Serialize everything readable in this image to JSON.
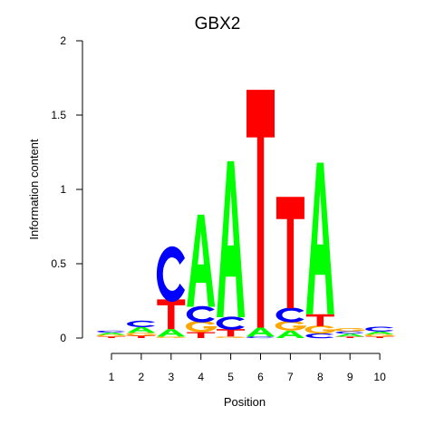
{
  "chart_data": {
    "type": "sequence-logo",
    "title": "GBX2",
    "xlabel": "Position",
    "ylabel": "Information content",
    "ylim": [
      0,
      2
    ],
    "yticks": [
      "0",
      "0.5",
      "1",
      "1.5",
      "2"
    ],
    "xticks": [
      "1",
      "2",
      "3",
      "4",
      "5",
      "6",
      "7",
      "8",
      "9",
      "10"
    ],
    "colors": {
      "A": "#00ff00",
      "C": "#0000ff",
      "G": "#ffa500",
      "T": "#ff0000"
    },
    "positions": [
      [
        {
          "l": "T",
          "h": 0.01
        },
        {
          "l": "G",
          "h": 0.012
        },
        {
          "l": "A",
          "h": 0.015
        },
        {
          "l": "C",
          "h": 0.013
        }
      ],
      [
        {
          "l": "T",
          "h": 0.015
        },
        {
          "l": "G",
          "h": 0.02
        },
        {
          "l": "A",
          "h": 0.04
        },
        {
          "l": "C",
          "h": 0.04
        }
      ],
      [
        {
          "l": "G",
          "h": 0.01
        },
        {
          "l": "A",
          "h": 0.05
        },
        {
          "l": "T",
          "h": 0.2
        },
        {
          "l": "C",
          "h": 0.34
        }
      ],
      [
        {
          "l": "T",
          "h": 0.04
        },
        {
          "l": "G",
          "h": 0.07
        },
        {
          "l": "C",
          "h": 0.1
        },
        {
          "l": "A",
          "h": 0.62
        }
      ],
      [
        {
          "l": "G",
          "h": 0.01
        },
        {
          "l": "T",
          "h": 0.05
        },
        {
          "l": "C",
          "h": 0.08
        },
        {
          "l": "A",
          "h": 1.05
        }
      ],
      [
        {
          "l": "C",
          "h": 0.01
        },
        {
          "l": "A",
          "h": 0.06
        },
        {
          "l": "T",
          "h": 1.6
        }
      ],
      [
        {
          "l": "A",
          "h": 0.05
        },
        {
          "l": "G",
          "h": 0.06
        },
        {
          "l": "C",
          "h": 0.09
        },
        {
          "l": "T",
          "h": 0.75
        }
      ],
      [
        {
          "l": "C",
          "h": 0.03
        },
        {
          "l": "G",
          "h": 0.05
        },
        {
          "l": "T",
          "h": 0.08
        },
        {
          "l": "A",
          "h": 1.02
        }
      ],
      [
        {
          "l": "T",
          "h": 0.01
        },
        {
          "l": "A",
          "h": 0.02
        },
        {
          "l": "C",
          "h": 0.015
        },
        {
          "l": "G",
          "h": 0.02
        }
      ],
      [
        {
          "l": "T",
          "h": 0.01
        },
        {
          "l": "G",
          "h": 0.015
        },
        {
          "l": "A",
          "h": 0.02
        },
        {
          "l": "C",
          "h": 0.03
        }
      ]
    ]
  }
}
